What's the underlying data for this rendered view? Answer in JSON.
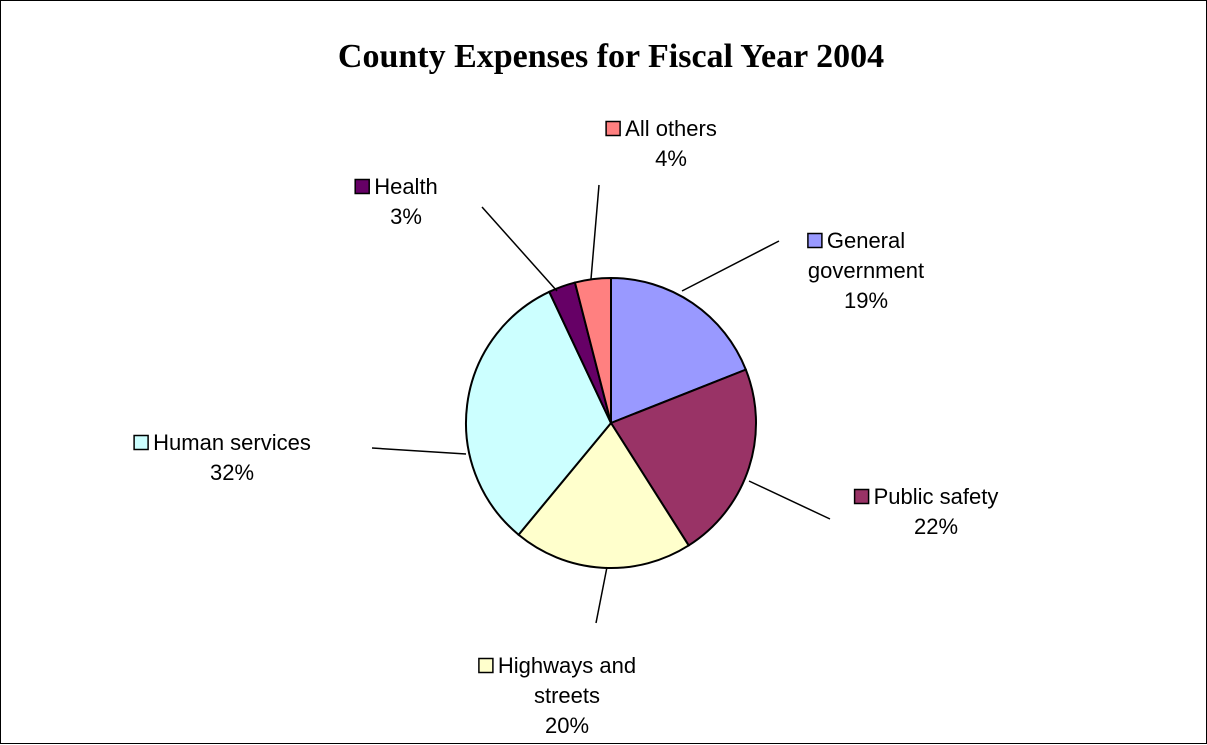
{
  "chart_data": {
    "type": "pie",
    "title": "County Expenses for Fiscal Year 2004",
    "slices": [
      {
        "label_lines": [
          "General",
          "government"
        ],
        "label": "General government",
        "percent_label": "19%",
        "value": 19,
        "color": "#9999ff"
      },
      {
        "label_lines": [
          "Public safety"
        ],
        "label": "Public safety",
        "percent_label": "22%",
        "value": 22,
        "color": "#993366"
      },
      {
        "label_lines": [
          "Highways and",
          "streets"
        ],
        "label": "Highways and streets",
        "percent_label": "20%",
        "value": 20,
        "color": "#ffffcc"
      },
      {
        "label_lines": [
          "Human services"
        ],
        "label": "Human services",
        "percent_label": "32%",
        "value": 32,
        "color": "#ccffff"
      },
      {
        "label_lines": [
          "Health"
        ],
        "label": "Health",
        "percent_label": "3%",
        "value": 3,
        "color": "#660066"
      },
      {
        "label_lines": [
          "All others"
        ],
        "label": "All others",
        "percent_label": "4%",
        "value": 4,
        "color": "#ff8080"
      }
    ]
  }
}
